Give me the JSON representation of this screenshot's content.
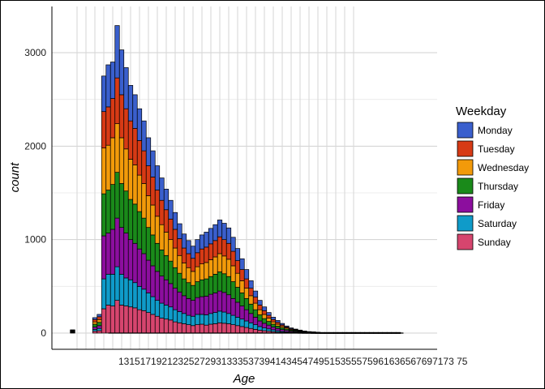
{
  "chart_data": {
    "type": "bar",
    "stacked": true,
    "xlabel": "Age",
    "ylabel": "count",
    "ylim": [
      0,
      3450
    ],
    "xlim": [
      10,
      86
    ],
    "y_ticks": [
      0,
      1000,
      2000,
      3000
    ],
    "x_ticks": [
      13,
      15,
      17,
      19,
      21,
      23,
      25,
      27,
      29,
      31,
      33,
      35,
      37,
      39,
      41,
      43,
      45,
      47,
      49,
      51,
      53,
      55,
      57,
      59,
      61,
      63,
      65,
      67,
      69,
      71,
      73,
      75
    ],
    "x_tick_text": "13151719212325272931333537394143454749515355575961636567697173 75",
    "grid": "vertical lines at x ticks, horizontal at y ticks",
    "legend": {
      "title": "Weekday",
      "position": "right"
    },
    "categories": [
      12,
      17,
      18,
      19,
      20,
      21,
      22,
      23,
      24,
      25,
      26,
      27,
      28,
      29,
      30,
      31,
      32,
      33,
      34,
      35,
      36,
      37,
      38,
      39,
      40,
      41,
      42,
      43,
      44,
      45,
      46,
      47,
      48,
      49,
      50,
      51,
      52,
      53,
      54,
      55,
      56,
      57,
      58,
      59,
      60,
      61,
      62,
      63,
      64,
      65,
      66,
      67,
      68,
      69,
      70,
      71,
      72,
      73,
      74,
      75,
      76,
      77,
      78,
      79,
      80,
      81,
      82,
      83,
      84,
      85
    ],
    "series": [
      {
        "name": "Sunday",
        "color": "#d6456e",
        "values": [
          5,
          20,
          25,
          260,
          300,
          290,
          350,
          300,
          290,
          280,
          270,
          250,
          240,
          220,
          200,
          180,
          160,
          150,
          140,
          120,
          110,
          100,
          90,
          80,
          90,
          95,
          85,
          95,
          100,
          110,
          105,
          100,
          90,
          80,
          70,
          60,
          50,
          40,
          30,
          25,
          20,
          15,
          10,
          8,
          6,
          5,
          4,
          3,
          2,
          2,
          1,
          1,
          1,
          1,
          1,
          1,
          1,
          1,
          1,
          1,
          1,
          1,
          1,
          1,
          1,
          1,
          1,
          1,
          1,
          1
        ]
      },
      {
        "name": "Saturday",
        "color": "#0f9bc9",
        "values": [
          5,
          20,
          25,
          320,
          330,
          340,
          360,
          330,
          300,
          290,
          270,
          250,
          230,
          210,
          190,
          170,
          160,
          150,
          140,
          130,
          120,
          110,
          100,
          100,
          110,
          105,
          110,
          115,
          120,
          125,
          120,
          110,
          100,
          90,
          80,
          70,
          60,
          50,
          40,
          30,
          25,
          20,
          15,
          10,
          8,
          6,
          5,
          4,
          3,
          2,
          2,
          1,
          1,
          1,
          1,
          1,
          1,
          1,
          1,
          1,
          1,
          1,
          1,
          1,
          1,
          1,
          1,
          1,
          1,
          1
        ]
      },
      {
        "name": "Friday",
        "color": "#8c0e9e",
        "values": [
          5,
          25,
          30,
          460,
          440,
          480,
          520,
          500,
          480,
          430,
          420,
          400,
          380,
          350,
          330,
          310,
          290,
          270,
          250,
          230,
          210,
          190,
          180,
          170,
          180,
          190,
          200,
          205,
          210,
          215,
          210,
          200,
          180,
          160,
          140,
          120,
          100,
          80,
          60,
          50,
          40,
          30,
          25,
          20,
          15,
          10,
          8,
          6,
          4,
          3,
          2,
          2,
          1,
          1,
          1,
          1,
          1,
          1,
          1,
          1,
          1,
          1,
          1,
          1,
          1,
          1,
          1,
          1,
          1,
          1
        ]
      },
      {
        "name": "Thursday",
        "color": "#1a8a1a",
        "values": [
          5,
          30,
          35,
          450,
          460,
          480,
          490,
          470,
          450,
          430,
          420,
          400,
          380,
          350,
          330,
          300,
          280,
          260,
          240,
          220,
          200,
          180,
          170,
          160,
          170,
          180,
          185,
          190,
          200,
          205,
          200,
          195,
          180,
          160,
          140,
          120,
          100,
          80,
          65,
          50,
          40,
          30,
          25,
          20,
          15,
          10,
          8,
          6,
          4,
          3,
          2,
          2,
          1,
          1,
          1,
          1,
          1,
          1,
          1,
          1,
          1,
          1,
          1,
          1,
          1,
          1,
          1,
          1,
          1,
          1
        ]
      },
      {
        "name": "Wednesday",
        "color": "#f29a0a",
        "values": [
          5,
          25,
          30,
          490,
          480,
          500,
          520,
          490,
          450,
          430,
          420,
          390,
          370,
          340,
          320,
          290,
          270,
          250,
          230,
          210,
          190,
          170,
          160,
          150,
          160,
          170,
          175,
          180,
          185,
          195,
          190,
          185,
          170,
          150,
          130,
          110,
          90,
          70,
          55,
          45,
          35,
          25,
          20,
          15,
          12,
          8,
          6,
          5,
          3,
          2,
          2,
          1,
          1,
          1,
          1,
          1,
          1,
          1,
          1,
          1,
          1,
          1,
          1,
          1,
          1,
          1,
          1,
          1,
          1,
          1
        ]
      },
      {
        "name": "Tuesday",
        "color": "#d73a15",
        "values": [
          5,
          25,
          30,
          390,
          410,
          420,
          490,
          460,
          430,
          410,
          390,
          370,
          350,
          320,
          300,
          280,
          260,
          240,
          220,
          200,
          180,
          160,
          150,
          140,
          150,
          160,
          165,
          170,
          175,
          180,
          175,
          170,
          155,
          135,
          120,
          100,
          80,
          65,
          50,
          40,
          30,
          25,
          20,
          15,
          10,
          8,
          6,
          4,
          3,
          2,
          2,
          1,
          1,
          1,
          1,
          1,
          1,
          1,
          1,
          1,
          1,
          1,
          1,
          1,
          1,
          1,
          1,
          1,
          1,
          1
        ]
      },
      {
        "name": "Monday",
        "color": "#3a5fcd",
        "values": [
          5,
          20,
          25,
          380,
          450,
          390,
          560,
          480,
          440,
          380,
          360,
          340,
          320,
          300,
          280,
          260,
          240,
          220,
          200,
          180,
          160,
          150,
          140,
          130,
          140,
          150,
          160,
          165,
          170,
          180,
          175,
          165,
          150,
          130,
          115,
          100,
          80,
          65,
          50,
          40,
          30,
          25,
          20,
          15,
          10,
          8,
          6,
          4,
          3,
          2,
          2,
          1,
          1,
          1,
          1,
          1,
          1,
          1,
          1,
          1,
          1,
          1,
          1,
          1,
          1,
          1,
          1,
          1,
          1,
          1
        ]
      }
    ],
    "legend_order": [
      "Monday",
      "Tuesday",
      "Wednesday",
      "Thursday",
      "Friday",
      "Saturday",
      "Sunday"
    ]
  }
}
